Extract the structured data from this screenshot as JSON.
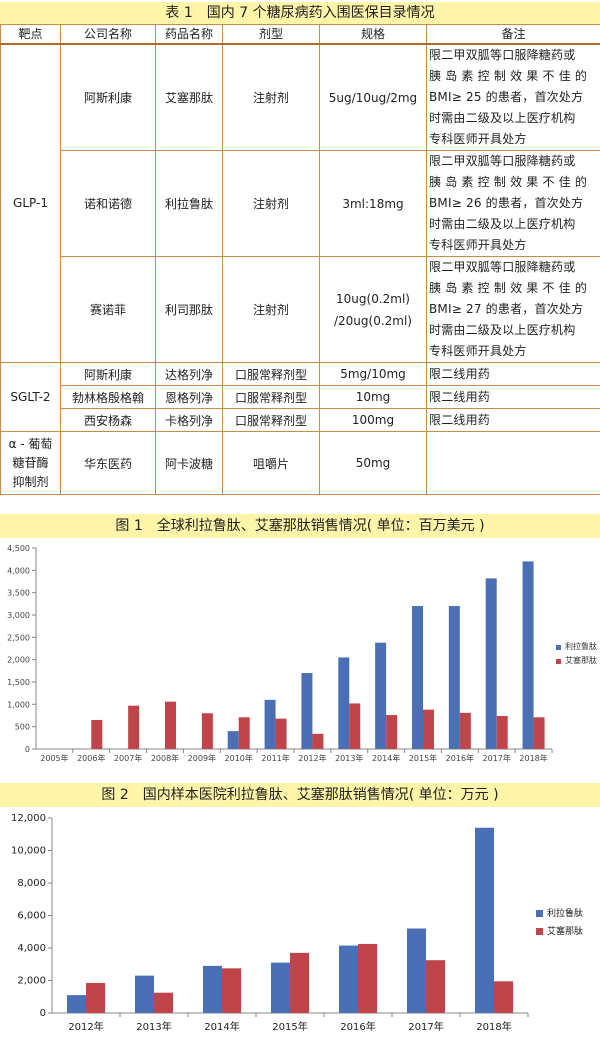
{
  "table": {
    "title": "表 1　国内 7 个糖尿病药入围医保目录情况",
    "headers": [
      "靶点",
      "公司名称",
      "药品名称",
      "剂型",
      "规格",
      "备注"
    ],
    "groups": [
      {
        "target": "GLP-1",
        "rows": [
          {
            "company": "阿斯利康",
            "drug": "艾塞那肽",
            "form": "注射剂",
            "spec": "5ug/10ug/2mg",
            "note": [
              "限二甲双胍等口服降糖药或",
              "胰 岛 素 控 制 效 果 不 佳 的",
              "BMI≥ 25 的患者，首次处方",
              "时需由二级及以上医疗机构",
              "专科医师开具处方"
            ]
          },
          {
            "company": "诺和诺德",
            "drug": "利拉鲁肽",
            "form": "注射剂",
            "spec": "3ml:18mg",
            "note": [
              "限二甲双胍等口服降糖药或",
              "胰 岛 素 控 制 效 果 不 佳 的",
              "BMI≥ 26 的患者，首次处方",
              "时需由二级及以上医疗机构",
              "专科医师开具处方"
            ]
          },
          {
            "company": "赛诺菲",
            "drug": "利司那肽",
            "form": "注射剂",
            "spec": "10ug(0.2ml)\n/20ug(0.2ml)",
            "note": [
              "限二甲双胍等口服降糖药或",
              "胰 岛 素 控 制 效 果 不 佳 的",
              "BMI≥ 27 的患者，首次处方",
              "时需由二级及以上医疗机构",
              "专科医师开具处方"
            ]
          }
        ]
      },
      {
        "target": "SGLT-2",
        "rows": [
          {
            "company": "阿斯利康",
            "drug": "达格列净",
            "form": "口服常释剂型",
            "spec": "5mg/10mg",
            "note": [
              "限二线用药"
            ]
          },
          {
            "company": "勃林格殷格翰",
            "drug": "恩格列净",
            "form": "口服常释剂型",
            "spec": "10mg",
            "note": [
              "限二线用药"
            ]
          },
          {
            "company": "西安杨森",
            "drug": "卡格列净",
            "form": "口服常释剂型",
            "spec": "100mg",
            "note": [
              "限二线用药"
            ]
          }
        ]
      },
      {
        "target": "α - 葡萄\n糖苷酶\n抑制剂",
        "rows": [
          {
            "company": "华东医药",
            "drug": "阿卡波糖",
            "form": "咀嚼片",
            "spec": "50mg",
            "note": []
          }
        ]
      }
    ]
  },
  "chart_data": [
    {
      "type": "bar",
      "title": "图 1　全球利拉鲁肽、艾塞那肽销售情况( 单位：百万美元 )",
      "categories": [
        "2005年",
        "2006年",
        "2007年",
        "2008年",
        "2009年",
        "2010年",
        "2011年",
        "2012年",
        "2013年",
        "2014年",
        "2015年",
        "2016年",
        "2017年",
        "2018年"
      ],
      "series": [
        {
          "name": "利拉鲁肽",
          "color": "#4a6fb5",
          "values": [
            0,
            0,
            0,
            0,
            0,
            400,
            1100,
            1700,
            2050,
            2380,
            3200,
            3200,
            3820,
            4200
          ]
        },
        {
          "name": "艾塞那肽",
          "color": "#c0454a",
          "values": [
            0,
            650,
            970,
            1060,
            800,
            710,
            680,
            340,
            1020,
            760,
            880,
            810,
            740,
            710
          ]
        }
      ],
      "yticks": [
        "0",
        "500",
        "1,000",
        "1,500",
        "2,000",
        "2,500",
        "3,000",
        "3,500",
        "4,000",
        "4,500"
      ],
      "ylim": [
        0,
        4500
      ],
      "grid": false,
      "legend": "right"
    },
    {
      "type": "bar",
      "title": "图 2　国内样本医院利拉鲁肽、艾塞那肽销售情况( 单位：万元 )",
      "categories": [
        "2012年",
        "2013年",
        "2014年",
        "2015年",
        "2016年",
        "2017年",
        "2018年"
      ],
      "series": [
        {
          "name": "利拉鲁肽",
          "color": "#4a6fb5",
          "values": [
            1100,
            2300,
            2900,
            3100,
            4150,
            5200,
            11400
          ]
        },
        {
          "name": "艾塞那肽",
          "color": "#c0454a",
          "values": [
            1850,
            1250,
            2750,
            3700,
            4250,
            3250,
            1950
          ]
        }
      ],
      "yticks": [
        "0",
        "2,000",
        "4,000",
        "6,000",
        "8,000",
        "10,000",
        "12,000"
      ],
      "ylim": [
        0,
        12000
      ],
      "grid": false,
      "legend": "right"
    }
  ]
}
